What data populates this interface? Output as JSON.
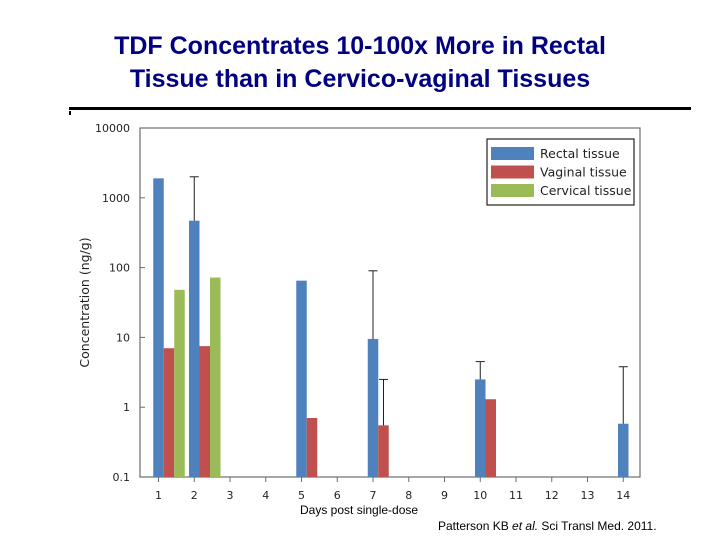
{
  "slide": {
    "title_line1": "TDF Concentrates 10-100x More in Rectal",
    "title_line2": "Tissue than in Cervico-vaginal Tissues",
    "title_color": "#000080",
    "citation_authors": "Patterson KB ",
    "citation_etal": "et al.",
    "citation_journal": " Sci Transl Med. 2011."
  },
  "chart_data": {
    "type": "bar",
    "scale": "log",
    "title": "",
    "xlabel": "Days post single-dose",
    "ylabel": "Concentration (ng/g)",
    "ylim": [
      0.1,
      10000
    ],
    "y_ticks": [
      "10000",
      "1000",
      "100",
      "10",
      "1",
      "0.1"
    ],
    "categories": [
      "1",
      "2",
      "3",
      "4",
      "5",
      "6",
      "7",
      "8",
      "9",
      "10",
      "11",
      "12",
      "13",
      "14"
    ],
    "legend_position": "top-right",
    "series": [
      {
        "name": "Rectal tissue",
        "color": "#4f81bd",
        "values": [
          1900,
          470,
          null,
          null,
          65,
          null,
          9.5,
          null,
          null,
          2.5,
          null,
          null,
          null,
          0.58
        ],
        "error_upper": [
          null,
          2000,
          null,
          null,
          null,
          null,
          90,
          null,
          null,
          4.5,
          null,
          null,
          null,
          3.8
        ]
      },
      {
        "name": "Vaginal tissue",
        "color": "#c0504d",
        "values": [
          7,
          7.5,
          null,
          null,
          0.7,
          null,
          0.55,
          null,
          null,
          1.3,
          null,
          null,
          null,
          null
        ],
        "error_upper": [
          null,
          null,
          null,
          null,
          null,
          null,
          2.5,
          null,
          null,
          null,
          null,
          null,
          null,
          null
        ]
      },
      {
        "name": "Cervical tissue",
        "color": "#9bbb59",
        "values": [
          48,
          72,
          null,
          null,
          null,
          null,
          null,
          null,
          null,
          null,
          null,
          null,
          null,
          null
        ],
        "error_upper": [
          null,
          null,
          null,
          null,
          null,
          null,
          null,
          null,
          null,
          null,
          null,
          null,
          null,
          null
        ]
      }
    ]
  }
}
